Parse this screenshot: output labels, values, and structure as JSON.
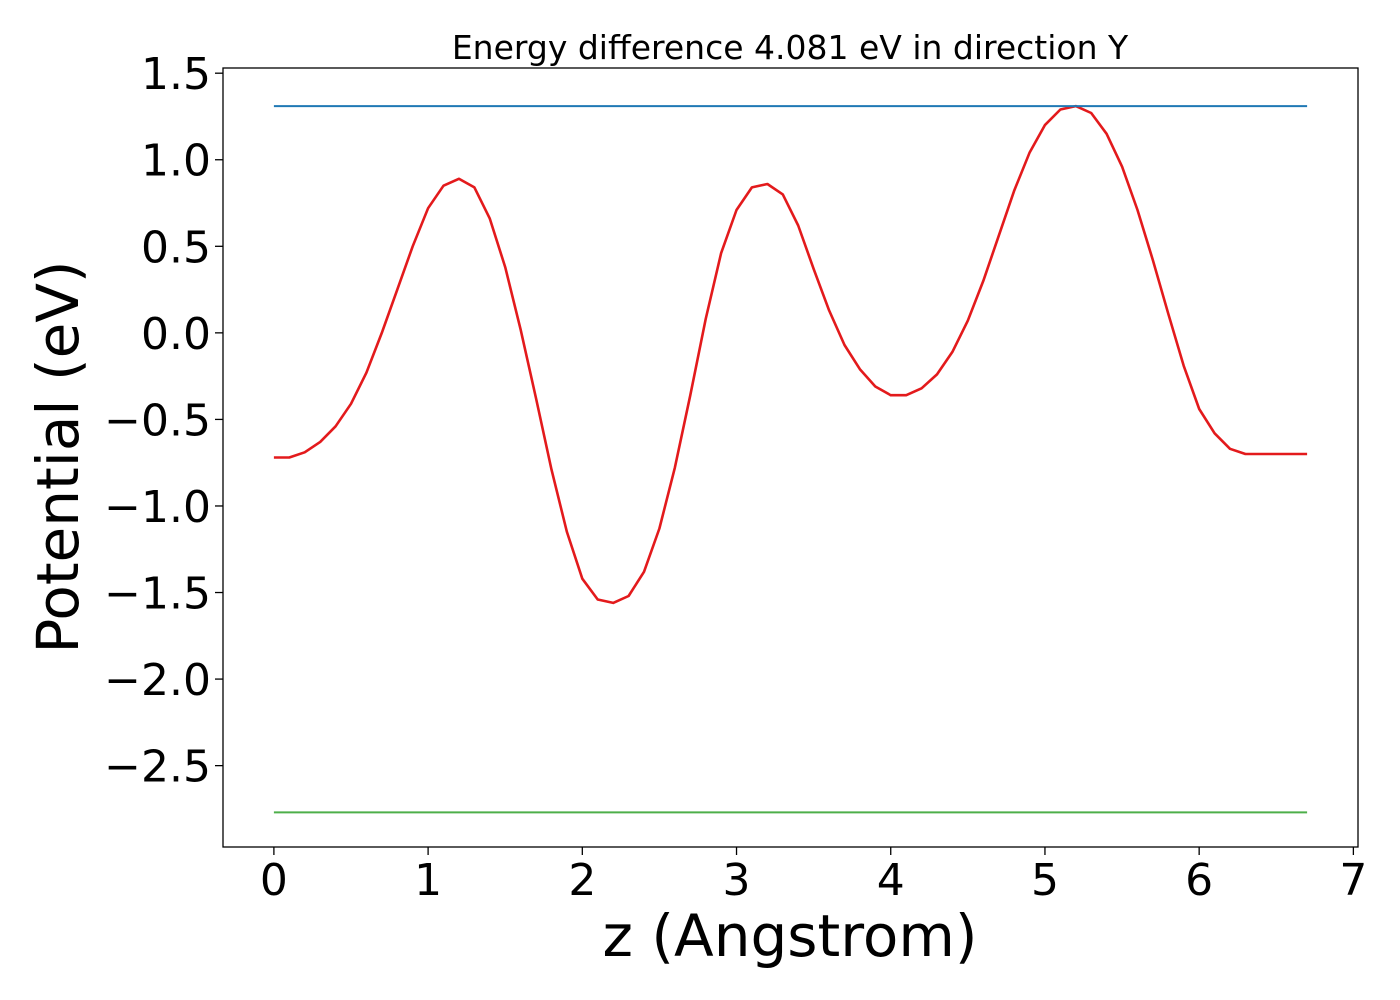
{
  "chart_data": {
    "type": "line",
    "title": "Energy difference 4.081 eV in direction Y",
    "xlabel": "z (Angstrom)",
    "ylabel": "Potential (eV)",
    "xlim": [
      -0.33,
      7.03
    ],
    "ylim": [
      -2.97,
      1.53
    ],
    "xticks": [
      0,
      1,
      2,
      3,
      4,
      5,
      6,
      7
    ],
    "xtick_labels": [
      "0",
      "1",
      "2",
      "3",
      "4",
      "5",
      "6",
      "7"
    ],
    "yticks": [
      1.5,
      1.0,
      0.5,
      0.0,
      -0.5,
      -1.0,
      -1.5,
      -2.0,
      -2.5
    ],
    "ytick_labels": [
      "1.5",
      "1.0",
      "0.5",
      "0.0",
      "−0.5",
      "−1.0",
      "−1.5",
      "−2.0",
      "−2.5"
    ],
    "grid": false,
    "series": [
      {
        "color": "#e31a1c",
        "x": [
          0.0,
          0.1,
          0.2,
          0.3,
          0.4,
          0.5,
          0.6,
          0.7,
          0.8,
          0.9,
          1.0,
          1.1,
          1.2,
          1.3,
          1.4,
          1.5,
          1.6,
          1.7,
          1.8,
          1.9,
          2.0,
          2.1,
          2.2,
          2.3,
          2.4,
          2.5,
          2.6,
          2.7,
          2.8,
          2.9,
          3.0,
          3.1,
          3.2,
          3.3,
          3.4,
          3.5,
          3.6,
          3.7,
          3.8,
          3.9,
          4.0,
          4.1,
          4.2,
          4.3,
          4.4,
          4.5,
          4.6,
          4.7,
          4.8,
          4.9,
          5.0,
          5.1,
          5.2,
          5.3,
          5.4,
          5.5,
          5.6,
          5.7,
          5.8,
          5.9,
          6.0,
          6.1,
          6.2,
          6.3,
          6.4,
          6.5,
          6.6,
          6.7
        ],
        "y": [
          -0.72,
          -0.72,
          -0.69,
          -0.63,
          -0.54,
          -0.41,
          -0.23,
          0.0,
          0.25,
          0.5,
          0.72,
          0.85,
          0.89,
          0.84,
          0.66,
          0.38,
          0.02,
          -0.38,
          -0.79,
          -1.15,
          -1.42,
          -1.54,
          -1.56,
          -1.52,
          -1.38,
          -1.13,
          -0.78,
          -0.36,
          0.08,
          0.46,
          0.71,
          0.84,
          0.86,
          0.8,
          0.62,
          0.37,
          0.13,
          -0.07,
          -0.21,
          -0.31,
          -0.36,
          -0.36,
          -0.32,
          -0.24,
          -0.11,
          0.07,
          0.3,
          0.56,
          0.82,
          1.04,
          1.2,
          1.29,
          1.31,
          1.27,
          1.15,
          0.96,
          0.71,
          0.42,
          0.11,
          -0.19,
          -0.44,
          -0.58,
          -0.67,
          -0.7,
          -0.7,
          -0.7,
          -0.7,
          -0.7
        ]
      },
      {
        "color": "#1f78b4",
        "x": [
          0.0,
          6.7
        ],
        "y": [
          1.31,
          1.31
        ]
      },
      {
        "color": "#4daf4a",
        "x": [
          0.0,
          6.7
        ],
        "y": [
          -2.77,
          -2.77
        ]
      }
    ]
  }
}
